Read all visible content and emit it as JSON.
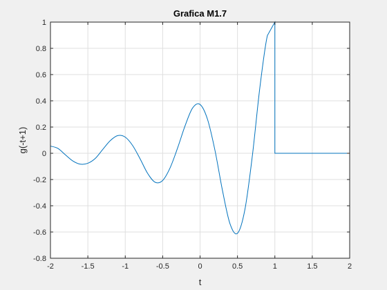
{
  "chart_data": {
    "type": "line",
    "title": "Grafica M1.7",
    "xlabel": "t",
    "ylabel": "g(-t+1)",
    "xlim": [
      -2,
      2
    ],
    "ylim": [
      -0.8,
      1
    ],
    "xticks": [
      -2,
      -1.5,
      -1,
      -0.5,
      0,
      0.5,
      1,
      1.5,
      2
    ],
    "xtick_labels": [
      "-2",
      "-1.5",
      "-1",
      "-0.5",
      "0",
      "0.5",
      "1",
      "1.5",
      "2"
    ],
    "yticks": [
      -0.8,
      -0.6,
      -0.4,
      -0.2,
      0,
      0.2,
      0.4,
      0.6,
      0.8,
      1
    ],
    "ytick_labels": [
      "-0.8",
      "-0.6",
      "-0.4",
      "-0.2",
      "0",
      "0.2",
      "0.4",
      "0.6",
      "0.8",
      "1"
    ],
    "grid": true,
    "series": [
      {
        "color": "#0072bd",
        "x": [
          -2,
          -1.9,
          -1.8,
          -1.7,
          -1.6,
          -1.5,
          -1.4,
          -1.3,
          -1.2,
          -1.1,
          -1.0,
          -0.9,
          -0.8,
          -0.7,
          -0.6,
          -0.5,
          -0.4,
          -0.3,
          -0.2,
          -0.1,
          0.0,
          0.1,
          0.2,
          0.3,
          0.4,
          0.5,
          0.6,
          0.7,
          0.8,
          0.9,
          1.0,
          1.0,
          1.5,
          2.0
        ],
        "y": [
          0.055,
          0.037,
          -0.012,
          -0.059,
          -0.083,
          -0.076,
          -0.039,
          0.03,
          0.097,
          0.135,
          0.123,
          0.058,
          -0.044,
          -0.154,
          -0.221,
          -0.207,
          -0.11,
          0.041,
          0.21,
          0.345,
          0.372,
          0.258,
          0.02,
          -0.285,
          -0.537,
          -0.61,
          -0.427,
          -0.014,
          0.504,
          0.898,
          1.0,
          0.0,
          0.0,
          0.0
        ]
      }
    ]
  }
}
